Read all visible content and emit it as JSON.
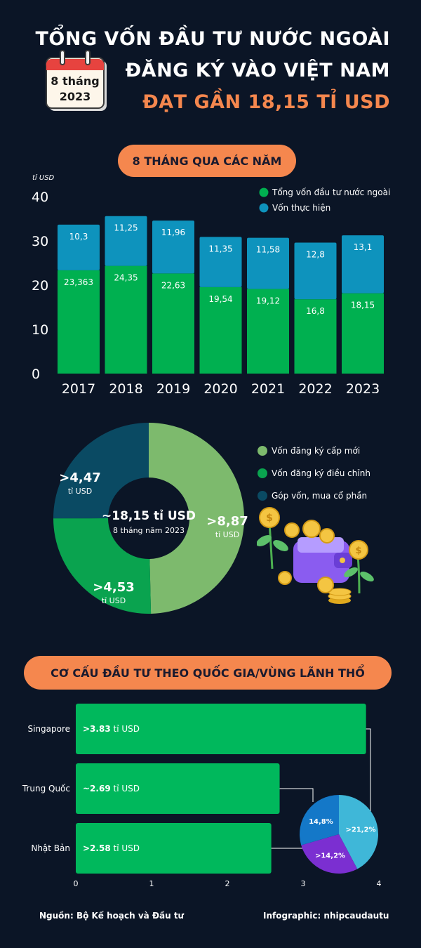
{
  "header": {
    "title_line1": "TỔNG VỐN ĐẦU TƯ NƯỚC NGOÀI",
    "title_line2": "ĐĂNG KÝ VÀO VIỆT NAM",
    "title_line3": "ĐẠT GẦN 18,15 TỈ USD",
    "calendar_line1": "8 tháng",
    "calendar_line2": "2023",
    "accent_color": "#f5874e"
  },
  "section1": {
    "pill_label": "8 THÁNG QUA CÁC NĂM"
  },
  "section3": {
    "pill_label": "CƠ CẤU ĐẦU TƯ THEO QUỐC GIA/VÙNG LÃNH THỔ"
  },
  "illustration": {
    "icon": "wallet-coins-plants-icon"
  },
  "footer": {
    "source": "Nguồn: Bộ Kế hoạch và Đầu tư",
    "credit": "Infographic: nhipcaudautu"
  },
  "chart_data": [
    {
      "type": "bar",
      "stacked": true,
      "ylabel": "tỉ USD",
      "ylim": [
        0,
        40
      ],
      "yticks": [
        0,
        10,
        20,
        30,
        40
      ],
      "categories": [
        "2017",
        "2018",
        "2019",
        "2020",
        "2021",
        "2022",
        "2023"
      ],
      "series": [
        {
          "name": "Tổng vốn đầu tư nước ngoài",
          "color": "#00b050",
          "values": [
            23.363,
            24.35,
            22.63,
            19.54,
            19.12,
            16.8,
            18.15
          ],
          "labels": [
            "23,363",
            "24,35",
            "22,63",
            "19,54",
            "19,12",
            "16,8",
            "18,15"
          ]
        },
        {
          "name": "Vốn thực hiện",
          "color": "#0e93bd",
          "values": [
            10.3,
            11.25,
            11.96,
            11.35,
            11.58,
            12.8,
            13.1
          ],
          "labels": [
            "10,3",
            "11,25",
            "11,96",
            "11,35",
            "11,58",
            "12,8",
            "13,1"
          ]
        }
      ],
      "legend_position": "top-right"
    },
    {
      "type": "pie",
      "donut": true,
      "center_value": "~18,15 tỉ USD",
      "center_sub": "8 tháng năm 2023",
      "slices": [
        {
          "name": "Vốn đăng ký cấp mới",
          "value": 8.87,
          "label": ">8,87",
          "unit": "tỉ USD",
          "color": "#7dba6d"
        },
        {
          "name": "Vốn đăng ký điều chỉnh",
          "value": 4.53,
          "label": ">4,53",
          "unit": "tỉ USD",
          "color": "#0aa34f"
        },
        {
          "name": "Góp vốn, mua cổ phần",
          "value": 4.47,
          "label": ">4,47",
          "unit": "tỉ USD",
          "color": "#0a4a63"
        }
      ],
      "legend_position": "right"
    },
    {
      "type": "bar",
      "orientation": "horizontal",
      "xlim": [
        0,
        4
      ],
      "xticks": [
        0,
        1,
        2,
        3,
        4
      ],
      "categories": [
        "Singapore",
        "Trung Quốc",
        "Nhật Bản"
      ],
      "values": [
        3.83,
        2.69,
        2.58
      ],
      "label_prefix": [
        ">",
        "~",
        ">"
      ],
      "label_numbers": [
        "3.83",
        "2.69",
        "2.58"
      ],
      "label_unit": "tỉ USD",
      "color": "#00b85c"
    },
    {
      "type": "pie",
      "slices": [
        {
          "label": ">21,2%",
          "value": 21.2,
          "color": "#3fb7d8"
        },
        {
          "label": ">14,2%",
          "value": 14.2,
          "color": "#7b2fd1"
        },
        {
          "label": "14,8%",
          "value": 14.8,
          "color": "#1478c8"
        }
      ]
    }
  ]
}
